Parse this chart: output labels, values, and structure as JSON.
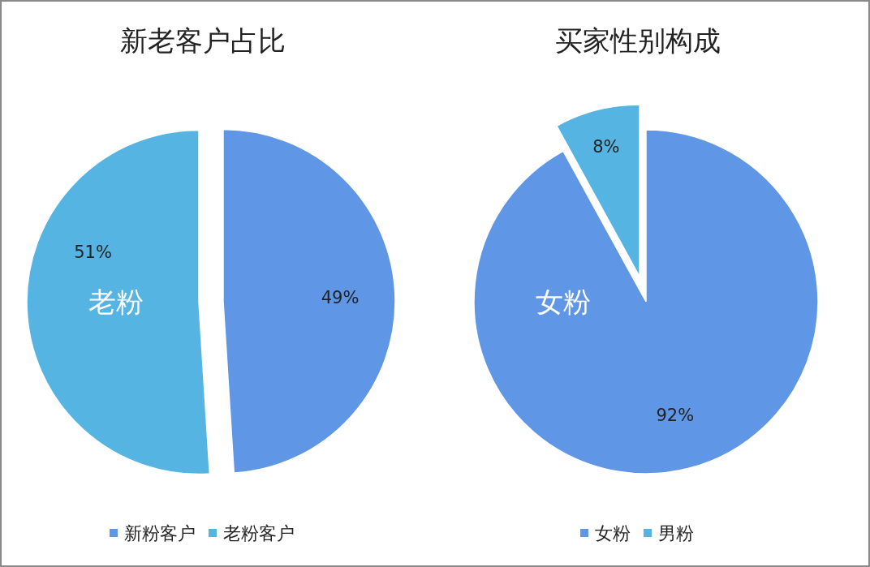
{
  "chart_data": [
    {
      "type": "pie",
      "title": "新老客户占比",
      "categories": [
        "新粉客户",
        "老粉客户"
      ],
      "values": [
        49,
        51
      ],
      "colors": [
        "#6096e6",
        "#56b4e3"
      ],
      "value_labels": [
        "49%",
        "51%"
      ],
      "legend": "bottom",
      "annotations": [
        {
          "text": "老粉",
          "x": "老粉客户"
        }
      ]
    },
    {
      "type": "pie",
      "title": "买家性别构成",
      "categories": [
        "女粉",
        "男粉"
      ],
      "values": [
        92,
        8
      ],
      "colors": [
        "#6096e6",
        "#56b4e3"
      ],
      "value_labels": [
        "92%",
        "8%"
      ],
      "legend": "bottom",
      "annotations": [
        {
          "text": "女粉",
          "x": "女粉"
        }
      ]
    }
  ]
}
